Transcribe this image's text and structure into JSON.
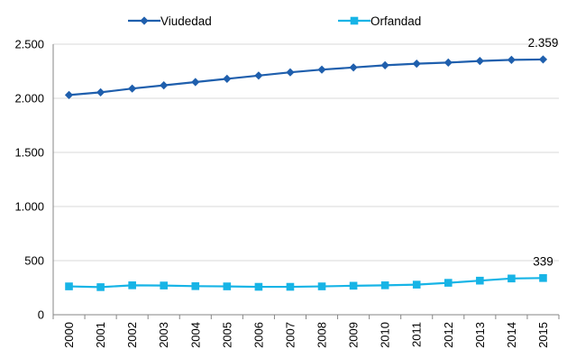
{
  "chart_data": {
    "type": "line",
    "categories": [
      "2000",
      "2001",
      "2002",
      "2003",
      "2004",
      "2005",
      "2006",
      "2007",
      "2008",
      "2009",
      "2010",
      "2011",
      "2012",
      "2013",
      "2014",
      "2015"
    ],
    "series": [
      {
        "name": "Viudedad",
        "color": "#1f5fad",
        "marker": "diamond",
        "values": [
          2030,
          2055,
          2090,
          2120,
          2150,
          2180,
          2210,
          2240,
          2265,
          2285,
          2305,
          2320,
          2330,
          2345,
          2355,
          2359
        ]
      },
      {
        "name": "Orfandad",
        "color": "#17b4e6",
        "marker": "square",
        "values": [
          262,
          255,
          272,
          270,
          264,
          262,
          258,
          258,
          262,
          268,
          272,
          278,
          295,
          315,
          335,
          339
        ]
      }
    ],
    "data_labels": [
      {
        "series": 0,
        "index": 15,
        "text": "2.359"
      },
      {
        "series": 1,
        "index": 15,
        "text": "339"
      }
    ],
    "ylim": [
      0,
      2500
    ],
    "yticks": [
      0,
      500,
      1000,
      1500,
      2000,
      2500
    ],
    "ytick_labels": [
      "0",
      "500",
      "1.000",
      "1.500",
      "2.000",
      "2.500"
    ],
    "xlabel": "",
    "ylabel": "",
    "title": "",
    "grid": true,
    "legend": "top"
  }
}
